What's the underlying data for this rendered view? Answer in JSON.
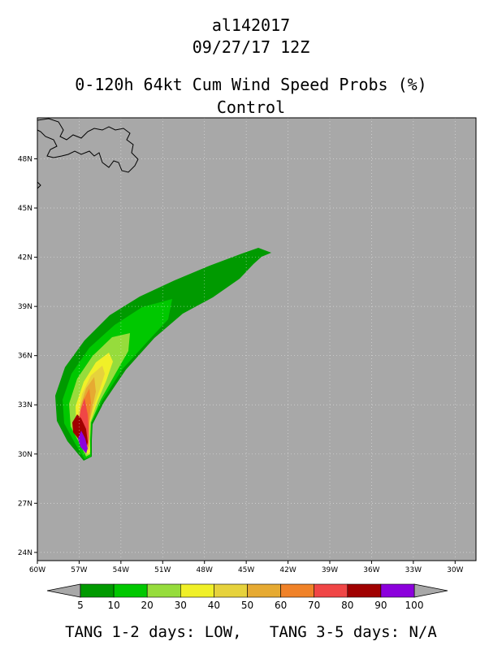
{
  "header": {
    "storm_id": "al142017",
    "datetime": "09/27/17 12Z",
    "title": "0-120h 64kt Cum Wind Speed Probs (%)",
    "subtitle": "Control"
  },
  "map": {
    "background_color": "#a8a8a8",
    "lon_range": [
      -60,
      -28.5
    ],
    "lat_range": [
      23.5,
      50.5
    ],
    "x_ticks": [
      "60W",
      "57W",
      "54W",
      "51W",
      "48W",
      "45W",
      "42W",
      "39W",
      "36W",
      "33W",
      "30W"
    ],
    "y_ticks": [
      "24N",
      "27N",
      "30N",
      "33N",
      "36N",
      "39N",
      "42N",
      "45N",
      "48N"
    ]
  },
  "colorbar": {
    "levels": [
      "5",
      "10",
      "20",
      "30",
      "40",
      "50",
      "60",
      "70",
      "80",
      "90",
      "100"
    ],
    "colors": [
      "#009a00",
      "#00c800",
      "#96dc3c",
      "#f0f028",
      "#e6d23c",
      "#e6aa32",
      "#f08228",
      "#f04646",
      "#a00000",
      "#8c00dc"
    ]
  },
  "footer": {
    "tang_12_label": "TANG 1-2 days:",
    "tang_12_value": "LOW,",
    "tang_35_label": "TANG 3-5 days:",
    "tang_35_value": "N/A"
  }
}
